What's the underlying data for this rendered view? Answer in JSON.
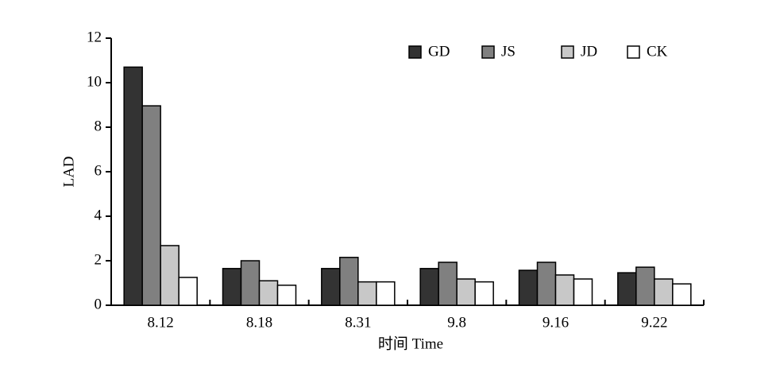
{
  "chart_data": {
    "type": "bar",
    "x_label": "时间 Time",
    "y_label": "LAD",
    "categories": [
      "8.12",
      "8.18",
      "8.31",
      "9.8",
      "9.16",
      "9.22"
    ],
    "series": [
      {
        "name": "GD",
        "color": "#333333",
        "values": [
          10.7,
          1.65,
          1.65,
          1.65,
          1.57,
          1.46
        ]
      },
      {
        "name": "JS",
        "color": "#808080",
        "values": [
          8.96,
          2.0,
          2.15,
          1.93,
          1.93,
          1.71
        ]
      },
      {
        "name": "JD",
        "color": "#c8c8c8",
        "values": [
          2.68,
          1.1,
          1.05,
          1.18,
          1.36,
          1.18
        ]
      },
      {
        "name": "CK",
        "color": "#ffffff",
        "values": [
          1.25,
          0.9,
          1.05,
          1.05,
          1.18,
          0.96
        ]
      }
    ],
    "ylim": [
      0,
      12
    ],
    "yticks": [
      0,
      2,
      4,
      6,
      8,
      10,
      12
    ],
    "legend": "top-right"
  }
}
